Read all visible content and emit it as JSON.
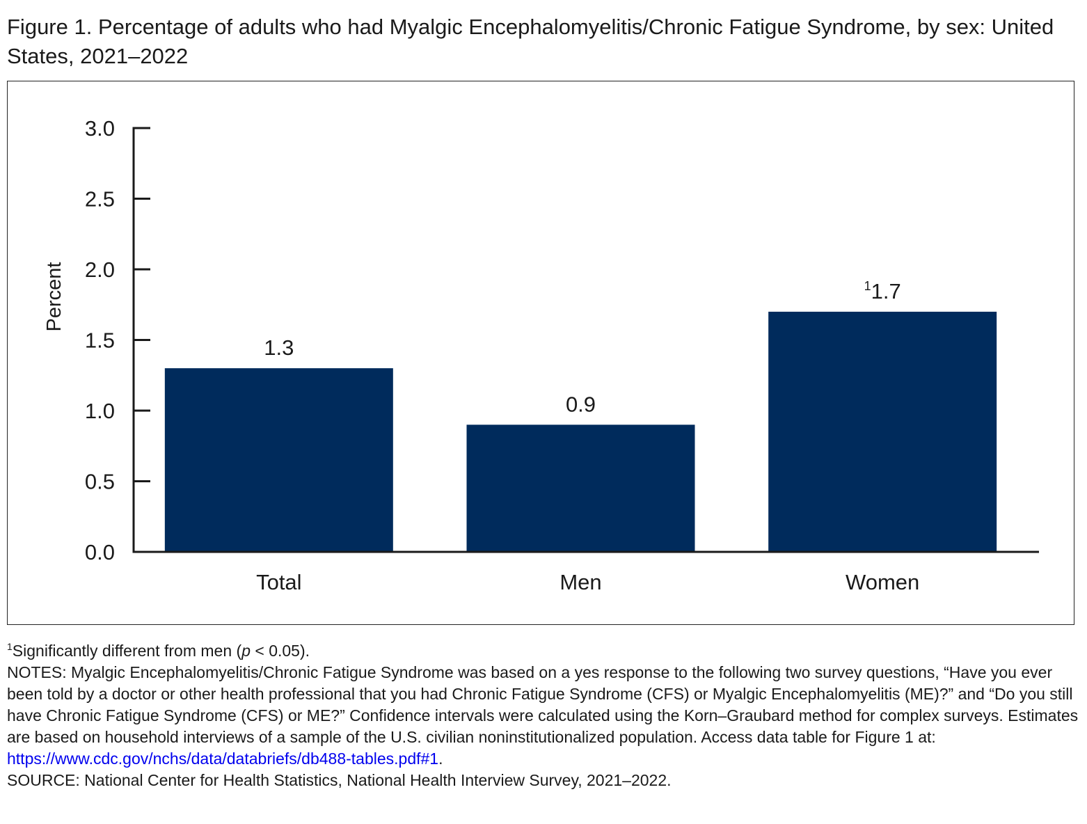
{
  "title": "Figure 1. Percentage of adults who had Myalgic Encephalomyelitis/Chronic Fatigue Syndrome, by sex: United States, 2021–2022",
  "chart_data": {
    "type": "bar",
    "categories": [
      "Total",
      "Men",
      "Women"
    ],
    "values": [
      1.3,
      0.9,
      1.7
    ],
    "value_labels": [
      "1.3",
      "0.9",
      "1.7"
    ],
    "value_label_superscripts": [
      "",
      "",
      "1"
    ],
    "ylabel": "Percent",
    "xlabel": "",
    "ylim": [
      0,
      3.0
    ],
    "yticks": [
      0.0,
      0.5,
      1.0,
      1.5,
      2.0,
      2.5,
      3.0
    ],
    "ytick_labels": [
      "0.0",
      "0.5",
      "1.0",
      "1.5",
      "2.0",
      "2.5",
      "3.0"
    ],
    "grid": false,
    "bar_color": "#002b5c",
    "axis_color": "#1a1a1a"
  },
  "footnotes": {
    "sig_marker": "1",
    "sig_text_before": "Significantly different from men (",
    "sig_text_p": "p",
    "sig_text_after": " < 0.05).",
    "notes_text": "NOTES: Myalgic Encephalomyelitis/Chronic Fatigue Syndrome was based on a yes response to the following two survey questions, “Have you ever been told by a doctor or other health professional that you had Chronic Fatigue Syndrome (CFS) or Myalgic Encephalomyelitis (ME)?” and “Do you still have Chronic Fatigue Syndrome (CFS) or ME?” Confidence intervals were calculated using the Korn–Graubard method for complex surveys. Estimates are based on household interviews of a sample of the U.S. civilian noninstitutionalized population. Access data table for Figure 1 at: ",
    "link_text": "https://www.cdc.gov/nchs/data/databriefs/db488-tables.pdf#1",
    "notes_end": ".",
    "source_text": "SOURCE: National Center for Health Statistics, National Health Interview Survey, 2021–2022."
  }
}
